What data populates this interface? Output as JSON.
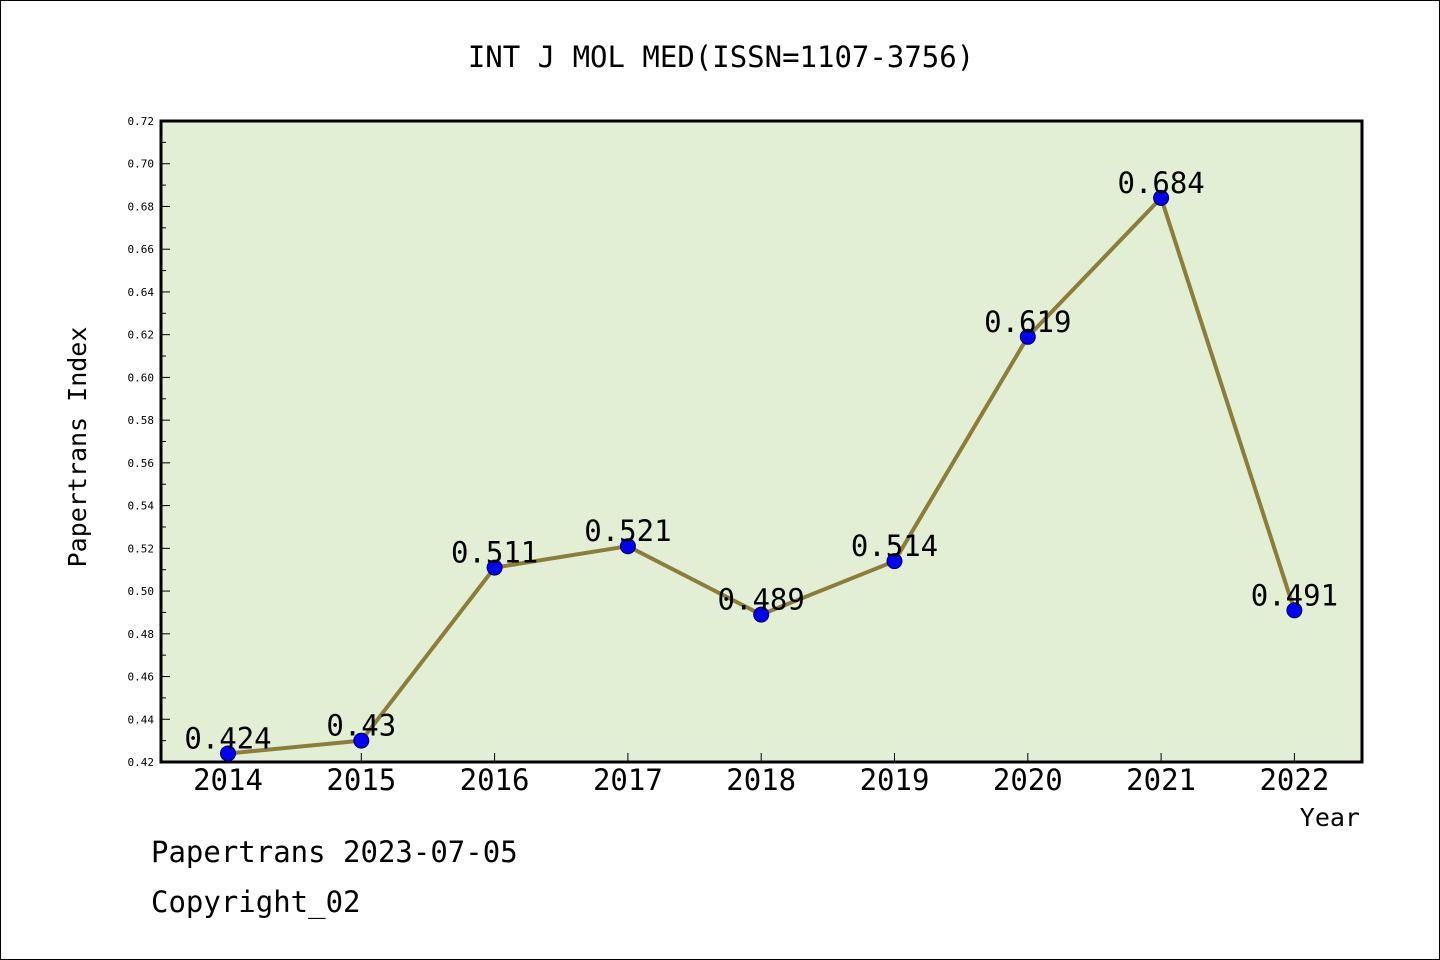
{
  "chart_data": {
    "type": "line",
    "title": "INT J MOL MED(ISSN=1107-3756)",
    "xlabel": "Year",
    "ylabel": "Papertrans Index",
    "categories": [
      "2014",
      "2015",
      "2016",
      "2017",
      "2018",
      "2019",
      "2020",
      "2021",
      "2022"
    ],
    "series": [
      {
        "values": [
          0.424,
          0.43,
          0.511,
          0.521,
          0.489,
          0.514,
          0.619,
          0.684,
          0.491
        ],
        "labels": [
          "0.424",
          "0.43",
          "0.511",
          "0.521",
          "0.489",
          "0.514",
          "0.619",
          "0.684",
          "0.491"
        ]
      }
    ],
    "ylim": [
      0.42,
      0.72
    ],
    "yticks": [
      "0.42",
      "0.44",
      "0.46",
      "0.48",
      "0.50",
      "0.52",
      "0.54",
      "0.56",
      "0.58",
      "0.60",
      "0.62",
      "0.64",
      "0.66",
      "0.68",
      "0.70",
      "0.72"
    ],
    "grid": false,
    "legend": "none",
    "colors": {
      "plot_background": "#e2efd5",
      "line": "#8c7e38",
      "marker": "#0000ff",
      "marker_edge": "#00004d",
      "axis": "#000000"
    }
  },
  "footer": {
    "line1": "Papertrans 2023-07-05",
    "line2": "Copyright_02"
  }
}
